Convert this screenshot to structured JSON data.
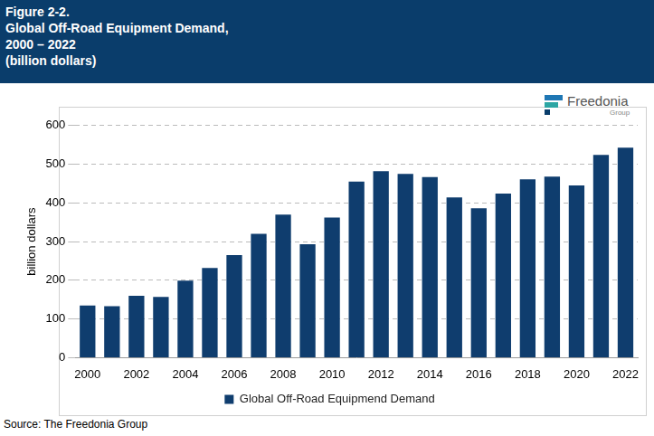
{
  "chart_data": {
    "type": "bar",
    "title": [
      "Figure 2-2.",
      "Global Off-Road Equipment Demand,",
      "2000 – 2022",
      "(billion dollars)"
    ],
    "y_label": "billion dollars",
    "source": "Source: The Freedonia Group",
    "logo": "Freedonia",
    "logo_sub": "Group",
    "categories": [
      "2000",
      null,
      "2002",
      null,
      "2004",
      null,
      "2006",
      null,
      "2008",
      null,
      "2010",
      null,
      "2012",
      null,
      "2014",
      null,
      "2016",
      null,
      "2018",
      null,
      "2020",
      null,
      "2022"
    ],
    "series": [
      {
        "name": "Global Off-Road Equipmend Demand",
        "color": "#0f3d6e",
        "values": [
          135,
          133,
          160,
          157,
          199,
          232,
          265,
          320,
          370,
          293,
          362,
          455,
          482,
          475,
          467,
          414,
          386,
          424,
          461,
          468,
          445,
          524,
          543
        ]
      }
    ],
    "ylim": [
      0,
      600
    ],
    "yticks": [
      0,
      100,
      200,
      300,
      400,
      500,
      600
    ],
    "grid": true,
    "legend": "bottom"
  }
}
